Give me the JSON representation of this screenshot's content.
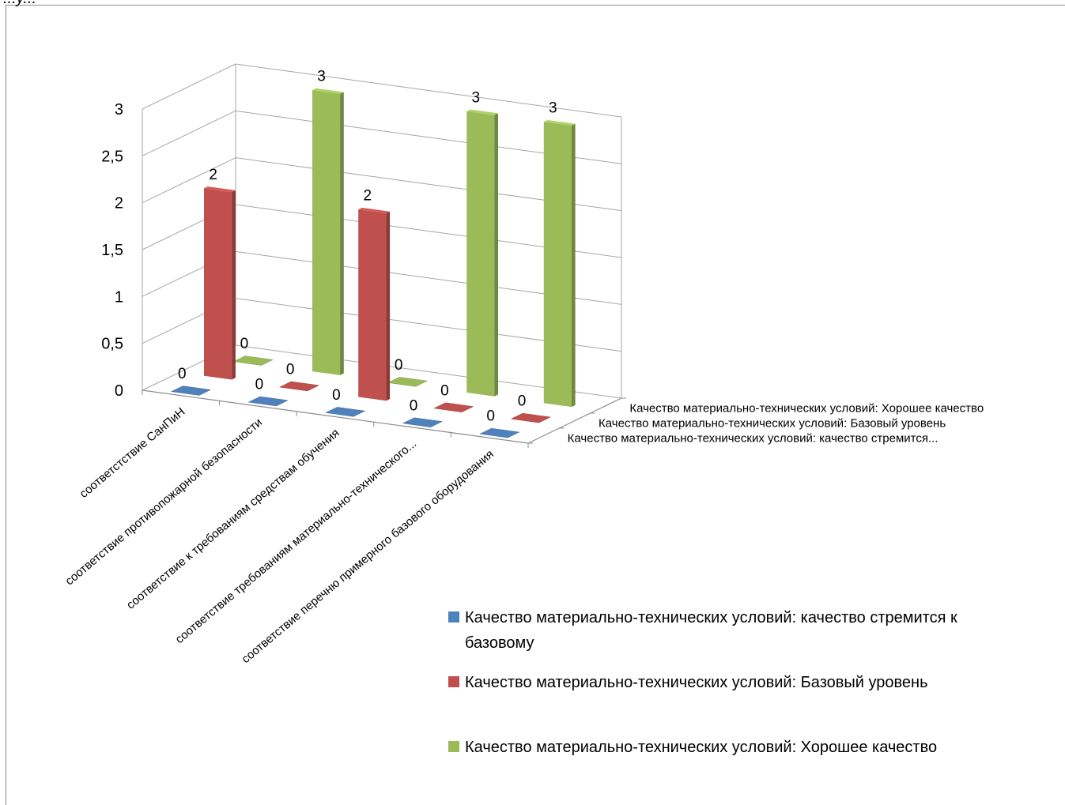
{
  "page": {
    "fragment_text": "...у..."
  },
  "chart_data": {
    "type": "bar",
    "subtype": "3d-column",
    "title": "",
    "categories": [
      "соответстствие СанПиН",
      "соответствие противопожарной безопасности",
      "соответствие к требованиям средствам обучения",
      "соответствие требованиям материально-технического...",
      "соответствие перечню примерного базового оборудования"
    ],
    "series": [
      {
        "name": "Качество материально-технических условий: качество стремится к базовому",
        "depth_label": "Качество материально-технических условий: качество стремится...",
        "color": "#4f81bd",
        "values": [
          0,
          0,
          0,
          0,
          0
        ]
      },
      {
        "name": "Качество материально-технических условий: Базовый уровень",
        "depth_label": "Качество материально-технических условий: Базовый уровень",
        "color": "#c0504d",
        "values": [
          2,
          0,
          2,
          0,
          0
        ]
      },
      {
        "name": "Качество материально-технических условий: Хорошее качество",
        "depth_label": "Качество материально-технических условий: Хорошее качество",
        "color": "#9bbb59",
        "values": [
          0,
          3,
          0,
          3,
          3
        ]
      }
    ],
    "y_ticks": [
      "0",
      "0,5",
      "1",
      "1,5",
      "2",
      "2,5",
      "3"
    ],
    "ylim": [
      0,
      3
    ],
    "grid": true,
    "legend_position": "bottom-right"
  }
}
